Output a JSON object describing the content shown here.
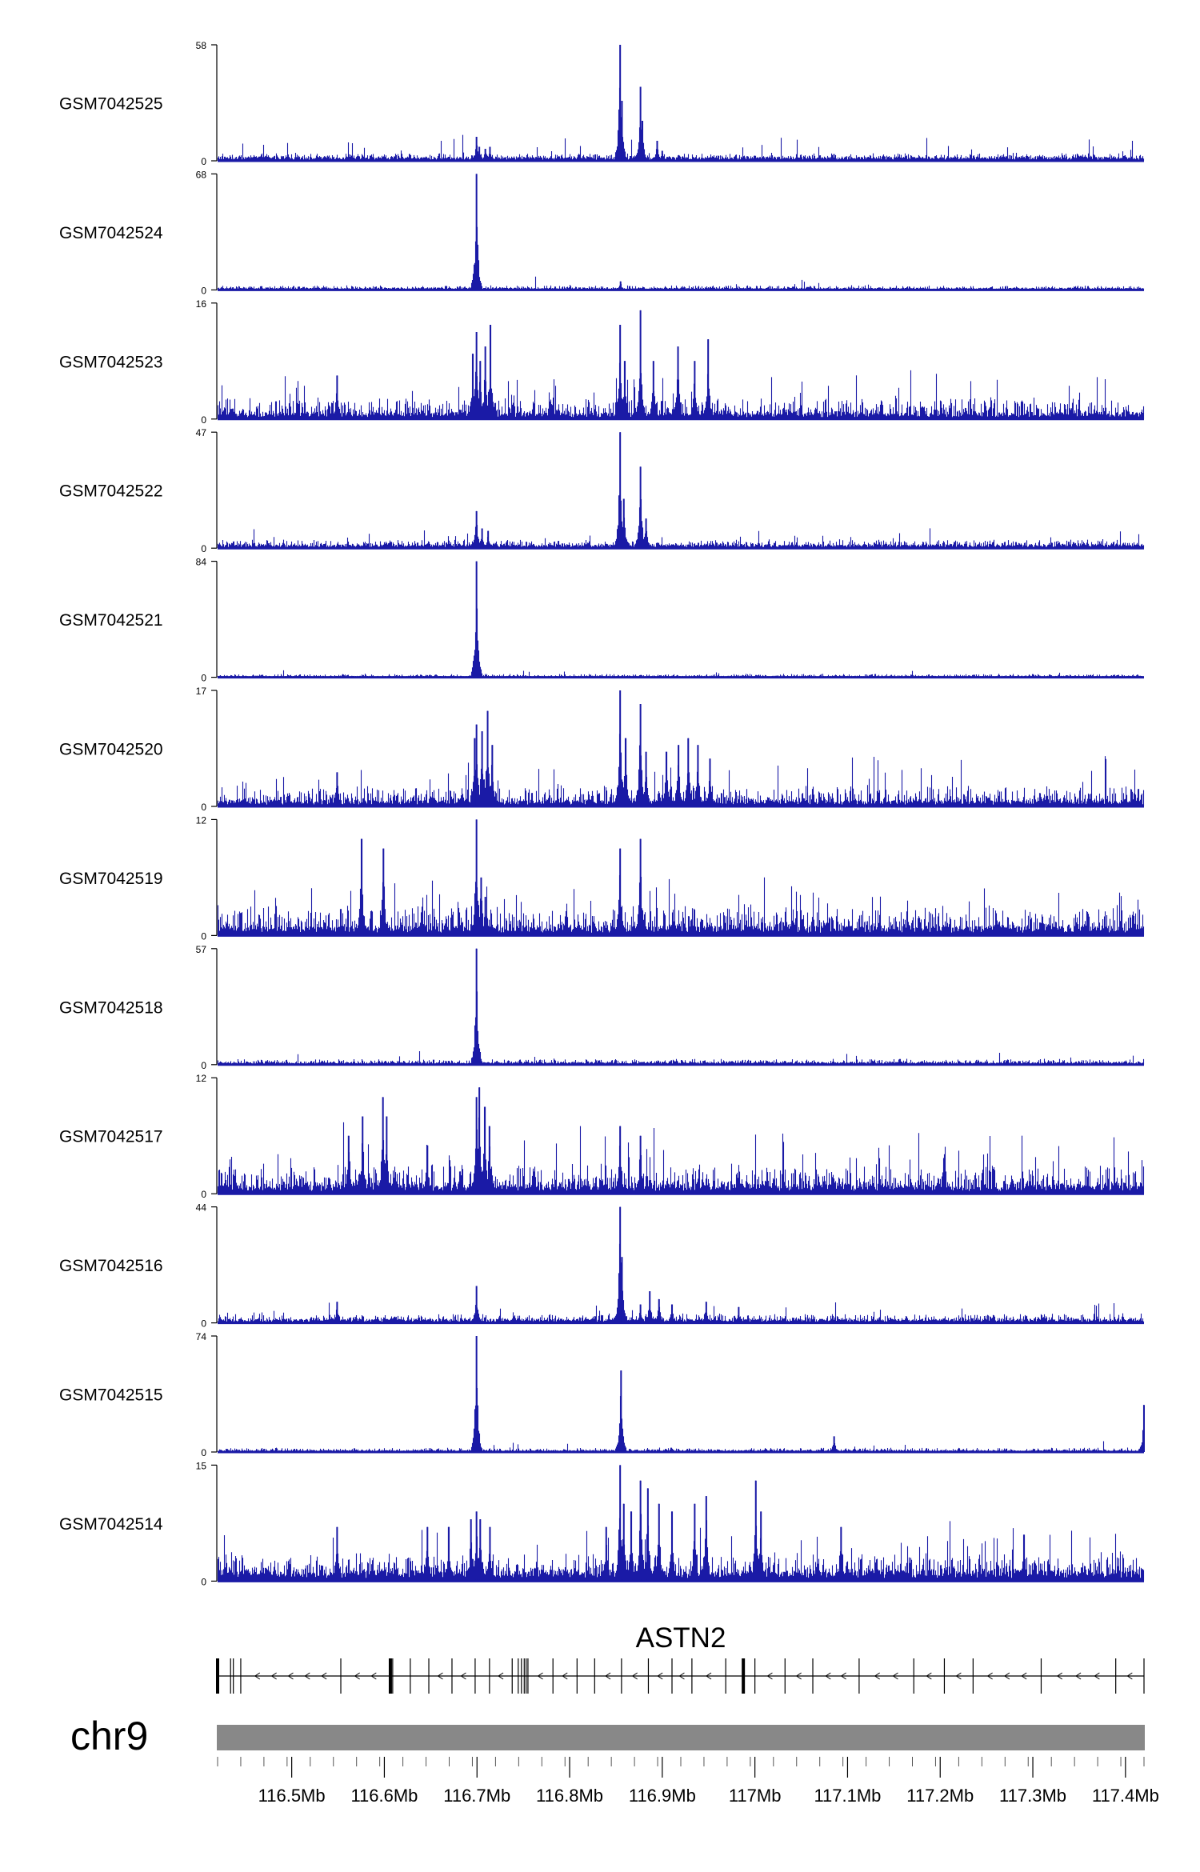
{
  "chart_data": {
    "type": "area",
    "title": "",
    "xlabel": "",
    "ylabel": "",
    "color": "#1a1aa6",
    "xlim": [
      116.42,
      117.42
    ],
    "grid": false,
    "chromosome": "chr9",
    "gene": {
      "name": "ASTN2",
      "strand": "-",
      "start": 116.42,
      "end": 117.42,
      "exons": [
        116.42,
        116.434,
        116.437,
        116.445,
        116.553,
        116.6065,
        116.609,
        116.628,
        116.648,
        116.673,
        116.698,
        116.7135,
        116.738,
        116.7445,
        116.748,
        116.751,
        116.753,
        116.755,
        116.782,
        116.808,
        116.827,
        116.856,
        116.885,
        116.9105,
        116.932,
        116.9685,
        116.9875,
        117.0,
        117.0325,
        117.0625,
        117.1125,
        117.1715,
        117.2045,
        117.2355,
        117.309,
        117.3895,
        117.42
      ]
    },
    "x_ticks": [
      116.5,
      116.6,
      116.7,
      116.8,
      116.9,
      117.0,
      117.1,
      117.2,
      117.3,
      117.4
    ],
    "x_tick_labels": [
      "116.5Mb",
      "116.6Mb",
      "116.7Mb",
      "116.8Mb",
      "116.9Mb",
      "117Mb",
      "117.1Mb",
      "117.2Mb",
      "117.3Mb",
      "117.4Mb"
    ],
    "series": [
      {
        "name": "GSM7042525",
        "ylim": [
          0,
          58
        ],
        "baseline": 2.0,
        "noise": 2.2,
        "sparse": 0.02,
        "sparseMax": 10,
        "peaks": [
          [
            116.6995,
            12
          ],
          [
            116.7025,
            7
          ],
          [
            116.709,
            6
          ],
          [
            116.714,
            7
          ],
          [
            116.8545,
            58
          ],
          [
            116.8565,
            30
          ],
          [
            116.8765,
            37
          ],
          [
            116.8785,
            20
          ],
          [
            116.8945,
            10
          ],
          [
            116.9,
            5
          ]
        ]
      },
      {
        "name": "GSM7042524",
        "ylim": [
          0,
          68
        ],
        "baseline": 1.2,
        "noise": 1.6,
        "sparse": 0.008,
        "sparseMax": 6,
        "peaks": [
          [
            116.6995,
            68
          ],
          [
            116.855,
            5
          ]
        ]
      },
      {
        "name": "GSM7042523",
        "ylim": [
          0,
          16
        ],
        "baseline": 0.9,
        "noise": 2.2,
        "sparse": 0.04,
        "sparseMax": 5,
        "peaks": [
          [
            116.549,
            6
          ],
          [
            116.6955,
            9
          ],
          [
            116.6995,
            12
          ],
          [
            116.7035,
            8
          ],
          [
            116.709,
            10
          ],
          [
            116.7145,
            13
          ],
          [
            116.8545,
            13
          ],
          [
            116.8595,
            8
          ],
          [
            116.8765,
            15
          ],
          [
            116.8905,
            8
          ],
          [
            116.917,
            10
          ],
          [
            116.935,
            8
          ],
          [
            116.9495,
            11
          ]
        ]
      },
      {
        "name": "GSM7042522",
        "ylim": [
          0,
          47
        ],
        "baseline": 1.5,
        "noise": 2.2,
        "sparse": 0.02,
        "sparseMax": 6,
        "peaks": [
          [
            116.6995,
            15
          ],
          [
            116.7055,
            8
          ],
          [
            116.712,
            7
          ],
          [
            116.8545,
            47
          ],
          [
            116.8585,
            20
          ],
          [
            116.8765,
            33
          ],
          [
            116.8825,
            12
          ]
        ]
      },
      {
        "name": "GSM7042521",
        "ylim": [
          0,
          84
        ],
        "baseline": 1.0,
        "noise": 1.6,
        "sparse": 0.008,
        "sparseMax": 5,
        "peaks": [
          [
            116.6995,
            84
          ]
        ]
      },
      {
        "name": "GSM7042520",
        "ylim": [
          0,
          17
        ],
        "baseline": 0.9,
        "noise": 2.2,
        "sparse": 0.04,
        "sparseMax": 5,
        "peaks": [
          [
            116.549,
            5
          ],
          [
            116.6975,
            10
          ],
          [
            116.6995,
            12
          ],
          [
            116.7055,
            11
          ],
          [
            116.7115,
            14
          ],
          [
            116.7165,
            9
          ],
          [
            116.8545,
            17
          ],
          [
            116.8605,
            10
          ],
          [
            116.8765,
            15
          ],
          [
            116.8825,
            8
          ],
          [
            116.9045,
            8
          ],
          [
            116.9175,
            9
          ],
          [
            116.928,
            10
          ],
          [
            116.9385,
            9
          ],
          [
            116.9515,
            7
          ]
        ]
      },
      {
        "name": "GSM7042519",
        "ylim": [
          0,
          12
        ],
        "baseline": 1.0,
        "noise": 2.2,
        "sparse": 0.05,
        "sparseMax": 4,
        "peaks": [
          [
            116.5755,
            10
          ],
          [
            116.599,
            9
          ],
          [
            116.6995,
            12
          ],
          [
            116.7045,
            6
          ],
          [
            116.709,
            4
          ],
          [
            116.8545,
            9
          ],
          [
            116.8765,
            10
          ]
        ]
      },
      {
        "name": "GSM7042518",
        "ylim": [
          0,
          57
        ],
        "baseline": 1.2,
        "noise": 1.8,
        "sparse": 0.01,
        "sparseMax": 5,
        "peaks": [
          [
            116.6995,
            57
          ]
        ]
      },
      {
        "name": "GSM7042517",
        "ylim": [
          0,
          12
        ],
        "baseline": 1.0,
        "noise": 2.2,
        "sparse": 0.05,
        "sparseMax": 5,
        "peaks": [
          [
            116.5615,
            6
          ],
          [
            116.5765,
            8
          ],
          [
            116.5985,
            10
          ],
          [
            116.6025,
            8
          ],
          [
            116.6465,
            5
          ],
          [
            116.6995,
            10
          ],
          [
            116.7025,
            11
          ],
          [
            116.7085,
            9
          ],
          [
            116.7135,
            7
          ],
          [
            116.8545,
            7
          ],
          [
            116.8765,
            6
          ]
        ]
      },
      {
        "name": "GSM7042516",
        "ylim": [
          0,
          44
        ],
        "baseline": 1.5,
        "noise": 2.2,
        "sparse": 0.02,
        "sparseMax": 6,
        "peaks": [
          [
            116.549,
            8
          ],
          [
            116.6995,
            14
          ],
          [
            116.8545,
            44
          ],
          [
            116.8565,
            25
          ],
          [
            116.8765,
            7
          ],
          [
            116.8865,
            12
          ],
          [
            116.8965,
            9
          ],
          [
            116.9105,
            7
          ],
          [
            116.9475,
            8
          ],
          [
            116.9825,
            6
          ]
        ]
      },
      {
        "name": "GSM7042515",
        "ylim": [
          0,
          74
        ],
        "baseline": 1.2,
        "noise": 1.7,
        "sparse": 0.01,
        "sparseMax": 5,
        "peaks": [
          [
            116.6995,
            74
          ],
          [
            116.8555,
            52
          ],
          [
            117.0855,
            10
          ],
          [
            117.42,
            30
          ]
        ]
      },
      {
        "name": "GSM7042514",
        "ylim": [
          0,
          15
        ],
        "baseline": 1.4,
        "noise": 2.4,
        "sparse": 0.045,
        "sparseMax": 5,
        "peaks": [
          [
            116.549,
            7
          ],
          [
            116.6465,
            7
          ],
          [
            116.6695,
            7
          ],
          [
            116.6935,
            8
          ],
          [
            116.6995,
            9
          ],
          [
            116.7035,
            8
          ],
          [
            116.714,
            7
          ],
          [
            116.8395,
            7
          ],
          [
            116.8545,
            15
          ],
          [
            116.8585,
            10
          ],
          [
            116.8665,
            9
          ],
          [
            116.8765,
            13
          ],
          [
            116.8845,
            12
          ],
          [
            116.8965,
            10
          ],
          [
            116.9105,
            9
          ],
          [
            116.935,
            10
          ],
          [
            116.9475,
            11
          ],
          [
            117.001,
            13
          ],
          [
            117.0065,
            9
          ],
          [
            117.093,
            7
          ],
          [
            117.2905,
            6
          ]
        ]
      }
    ]
  }
}
